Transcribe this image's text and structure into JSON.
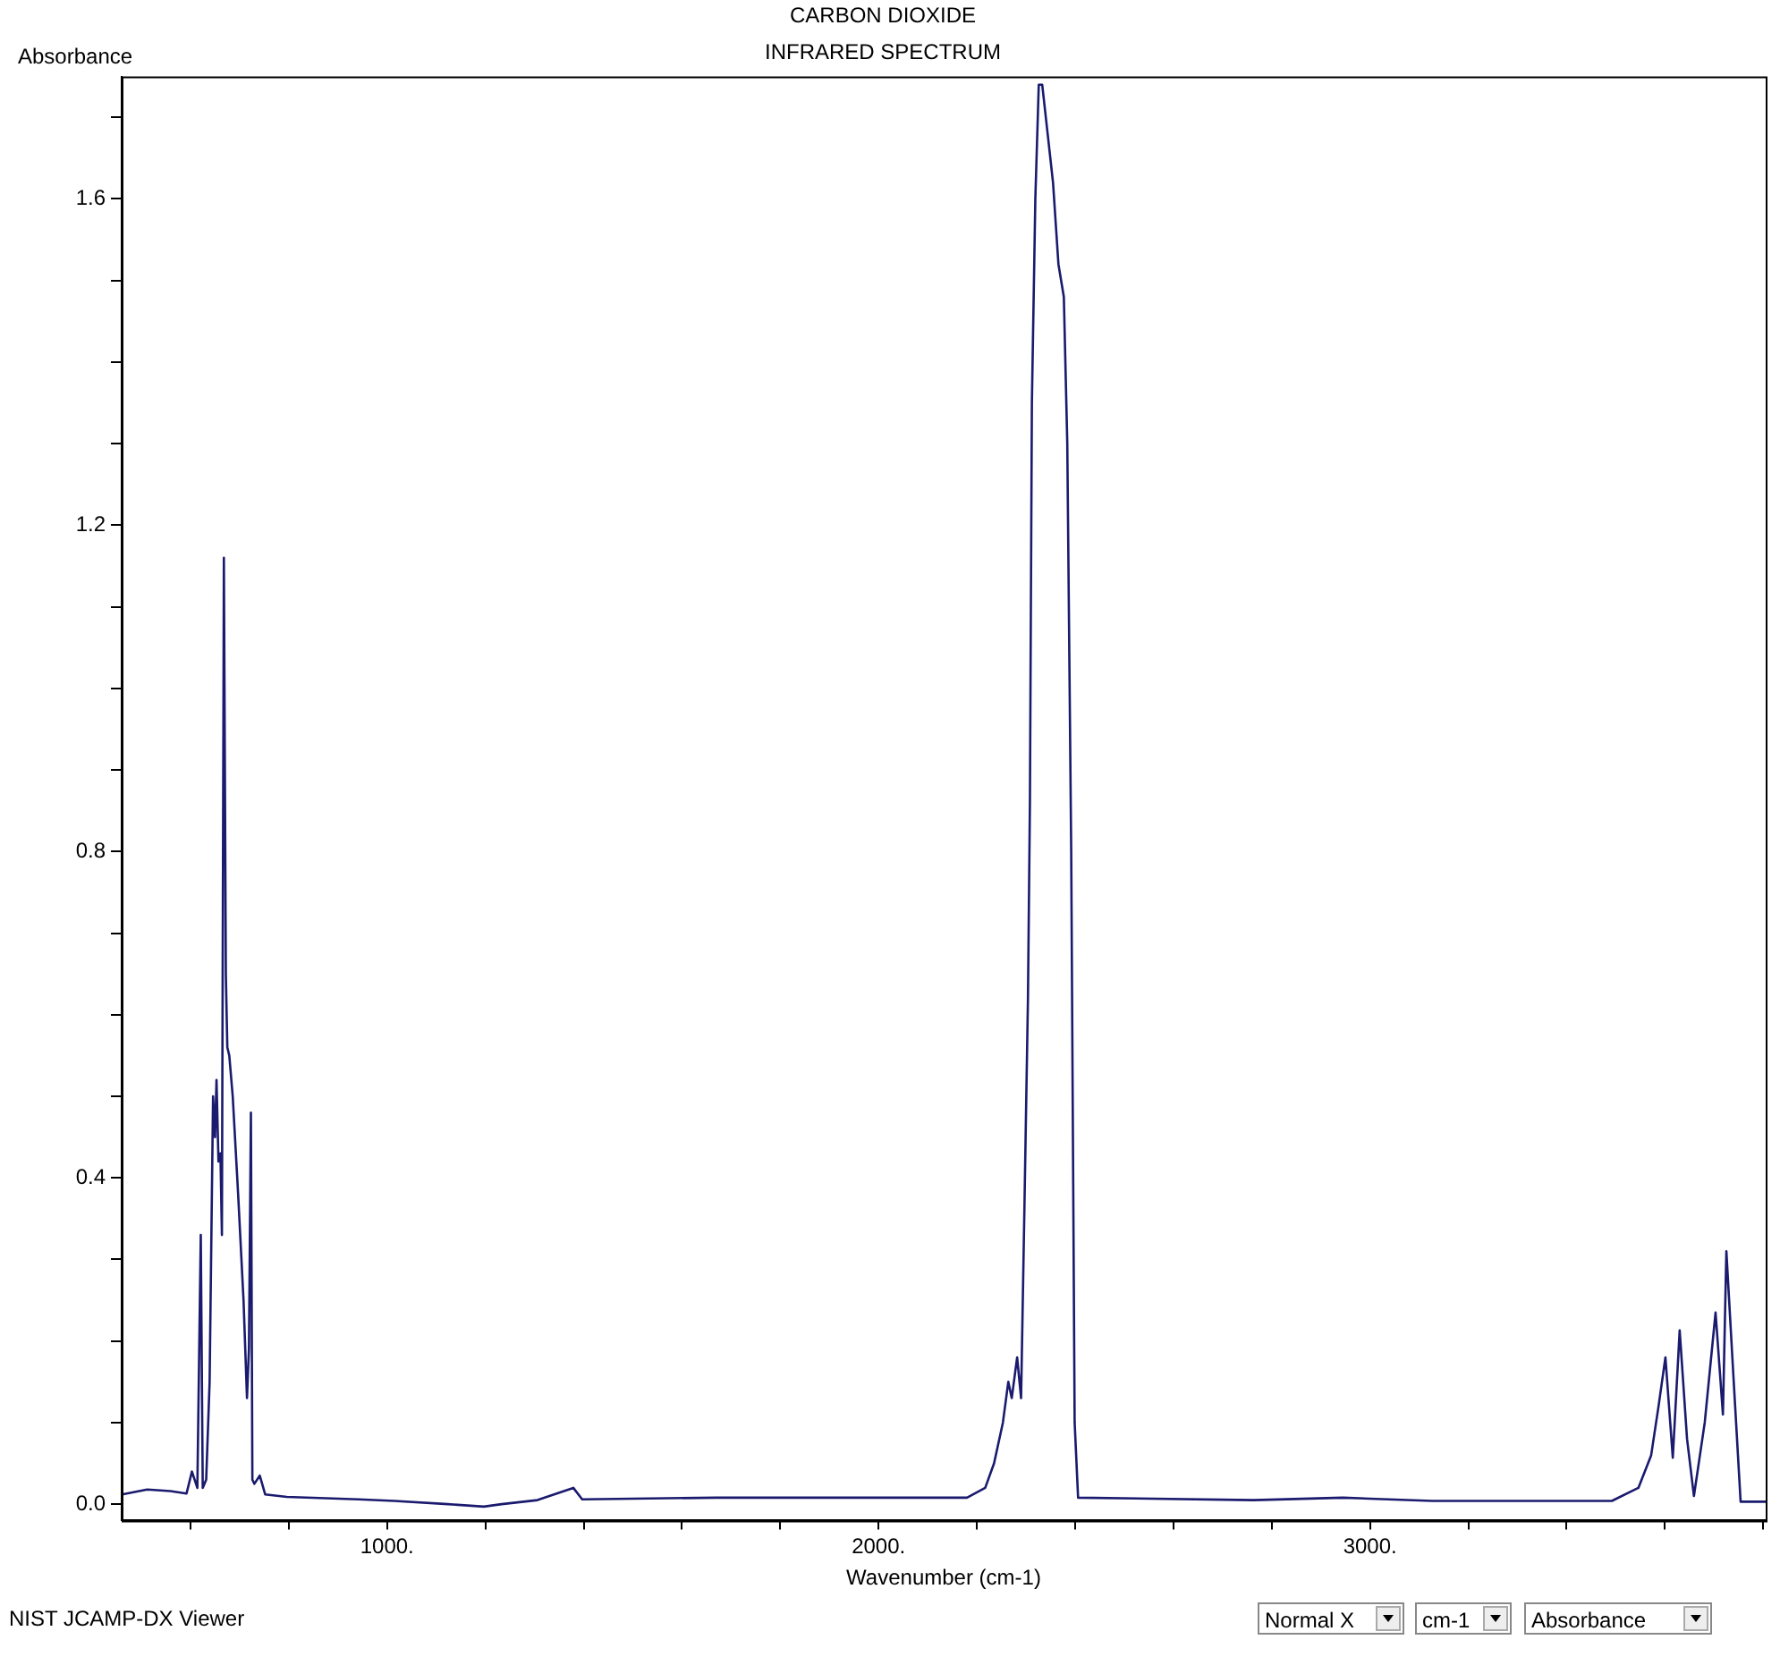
{
  "chart_data": {
    "type": "line",
    "title": "CARBON DIOXIDE",
    "subtitle": "INFRARED SPECTRUM",
    "xlabel": "Wavenumber (cm-1)",
    "ylabel": "Absorbance",
    "annotations": [
      "NIST JCAMP-DX Viewer",
      "Normal X",
      "cm-1",
      "Absorbance"
    ],
    "xlim": [
      460,
      3805
    ],
    "ylim": [
      -0.02,
      1.75
    ],
    "xticks": [
      {
        "value": 600,
        "label": null
      },
      {
        "value": 800,
        "label": null
      },
      {
        "value": 1000,
        "label": "1000."
      },
      {
        "value": 1200,
        "label": null
      },
      {
        "value": 1400,
        "label": null
      },
      {
        "value": 1600,
        "label": null
      },
      {
        "value": 1800,
        "label": null
      },
      {
        "value": 2000,
        "label": "2000."
      },
      {
        "value": 2200,
        "label": null
      },
      {
        "value": 2400,
        "label": null
      },
      {
        "value": 2600,
        "label": null
      },
      {
        "value": 2800,
        "label": null
      },
      {
        "value": 3000,
        "label": "3000."
      },
      {
        "value": 3200,
        "label": null
      },
      {
        "value": 3400,
        "label": null
      },
      {
        "value": 3600,
        "label": null
      },
      {
        "value": 3800,
        "label": null
      }
    ],
    "yticks": [
      {
        "value": 0,
        "label": "0.0"
      },
      {
        "value": 0.1,
        "label": null
      },
      {
        "value": 0.2,
        "label": null
      },
      {
        "value": 0.3,
        "label": null
      },
      {
        "value": 0.4,
        "label": "0.4"
      },
      {
        "value": 0.5,
        "label": null
      },
      {
        "value": 0.6,
        "label": null
      },
      {
        "value": 0.7,
        "label": null
      },
      {
        "value": 0.8,
        "label": "0.8"
      },
      {
        "value": 0.9,
        "label": null
      },
      {
        "value": 1.0,
        "label": null
      },
      {
        "value": 1.1,
        "label": null
      },
      {
        "value": 1.2,
        "label": "1.2"
      },
      {
        "value": 1.3,
        "label": null
      },
      {
        "value": 1.4,
        "label": null
      },
      {
        "value": 1.5,
        "label": null
      },
      {
        "value": 1.6,
        "label": "1.6"
      },
      {
        "value": 1.7,
        "label": null
      }
    ],
    "grid": false,
    "legend": false,
    "marker": "none",
    "line_style": "solid",
    "series": [
      {
        "color": "#1a1a6e",
        "x": [
          461,
          512,
          559,
          592,
          603,
          614,
          621,
          625,
          632,
          639,
          646,
          650,
          653,
          657,
          661,
          664,
          668,
          672,
          675,
          679,
          686,
          697,
          708,
          715,
          719,
          723,
          726,
          730,
          741,
          752,
          796,
          942,
          1015,
          1124,
          1197,
          1233,
          1306,
          1379,
          1397,
          1670,
          1962,
          2180,
          2217,
          2235,
          2253,
          2264,
          2271,
          2282,
          2290,
          2297,
          2304,
          2308,
          2312,
          2319,
          2326,
          2333,
          2344,
          2355,
          2366,
          2377,
          2384,
          2392,
          2399,
          2406,
          2763,
          2945,
          3127,
          3492,
          3546,
          3572,
          3587,
          3601,
          3616,
          3630,
          3645,
          3659,
          3681,
          3703,
          3718,
          3725,
          3740,
          3754,
          3805
        ],
        "values": [
          0.012,
          0.018,
          0.016,
          0.013,
          0.04,
          0.02,
          0.33,
          0.02,
          0.03,
          0.15,
          0.5,
          0.45,
          0.52,
          0.42,
          0.43,
          0.33,
          1.16,
          0.65,
          0.56,
          0.55,
          0.5,
          0.38,
          0.25,
          0.13,
          0.19,
          0.48,
          0.03,
          0.025,
          0.035,
          0.012,
          0.009,
          0.006,
          0.004,
          0.0,
          -0.003,
          0.0,
          0.005,
          0.02,
          0.006,
          0.008,
          0.008,
          0.008,
          0.02,
          0.05,
          0.1,
          0.15,
          0.13,
          0.18,
          0.13,
          0.37,
          0.62,
          0.86,
          1.35,
          1.6,
          1.74,
          1.74,
          1.68,
          1.62,
          1.52,
          1.48,
          1.3,
          0.8,
          0.1,
          0.008,
          0.005,
          0.008,
          0.004,
          0.004,
          0.02,
          0.06,
          0.12,
          0.18,
          0.057,
          0.213,
          0.08,
          0.01,
          0.1,
          0.235,
          0.11,
          0.31,
          0.15,
          0.003,
          0.003
        ]
      }
    ]
  }
}
